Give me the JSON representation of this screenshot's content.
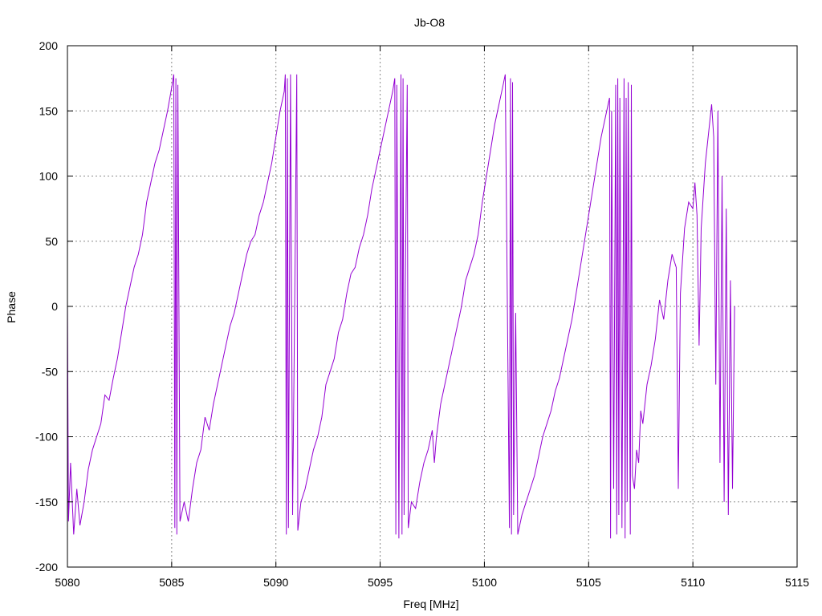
{
  "chart_data": {
    "type": "line",
    "title": "Jb-O8",
    "xlabel": "Freq [MHz]",
    "ylabel": "Phase",
    "xlim": [
      5080,
      5115
    ],
    "ylim": [
      -200,
      200
    ],
    "x_ticks": [
      5080,
      5085,
      5090,
      5095,
      5100,
      5105,
      5110,
      5115
    ],
    "y_ticks": [
      -200,
      -150,
      -100,
      -50,
      0,
      50,
      100,
      150,
      200
    ],
    "x_tick_labels": [
      "5080",
      "5085",
      "5090",
      "5095",
      "5100",
      "5105",
      "5110",
      "5115"
    ],
    "y_tick_labels": [
      "-200",
      "-150",
      "-100",
      "-50",
      "0",
      "50",
      "100",
      "150",
      "200"
    ],
    "grid": true,
    "legend": "none",
    "color": "#9400d3",
    "series": [
      {
        "points": [
          [
            5080.0,
            5
          ],
          [
            5080.05,
            -165
          ],
          [
            5080.15,
            -120
          ],
          [
            5080.3,
            -175
          ],
          [
            5080.45,
            -140
          ],
          [
            5080.6,
            -168
          ],
          [
            5080.8,
            -150
          ],
          [
            5081.0,
            -125
          ],
          [
            5081.2,
            -110
          ],
          [
            5081.4,
            -100
          ],
          [
            5081.6,
            -90
          ],
          [
            5081.8,
            -68
          ],
          [
            5082.0,
            -72
          ],
          [
            5082.2,
            -55
          ],
          [
            5082.4,
            -40
          ],
          [
            5082.6,
            -20
          ],
          [
            5082.8,
            0
          ],
          [
            5083.0,
            15
          ],
          [
            5083.2,
            30
          ],
          [
            5083.4,
            40
          ],
          [
            5083.6,
            55
          ],
          [
            5083.8,
            80
          ],
          [
            5084.0,
            95
          ],
          [
            5084.2,
            110
          ],
          [
            5084.4,
            120
          ],
          [
            5084.6,
            135
          ],
          [
            5084.8,
            150
          ],
          [
            5085.0,
            168
          ],
          [
            5085.1,
            178
          ],
          [
            5085.15,
            -170
          ],
          [
            5085.2,
            175
          ],
          [
            5085.25,
            -175
          ],
          [
            5085.3,
            170
          ],
          [
            5085.35,
            0
          ],
          [
            5085.4,
            -165
          ],
          [
            5085.6,
            -150
          ],
          [
            5085.8,
            -165
          ],
          [
            5086.0,
            -140
          ],
          [
            5086.2,
            -120
          ],
          [
            5086.4,
            -110
          ],
          [
            5086.6,
            -85
          ],
          [
            5086.8,
            -95
          ],
          [
            5087.0,
            -75
          ],
          [
            5087.2,
            -60
          ],
          [
            5087.4,
            -45
          ],
          [
            5087.6,
            -30
          ],
          [
            5087.8,
            -15
          ],
          [
            5088.0,
            -5
          ],
          [
            5088.2,
            10
          ],
          [
            5088.4,
            25
          ],
          [
            5088.6,
            40
          ],
          [
            5088.8,
            50
          ],
          [
            5089.0,
            55
          ],
          [
            5089.2,
            70
          ],
          [
            5089.4,
            80
          ],
          [
            5089.6,
            95
          ],
          [
            5089.8,
            110
          ],
          [
            5090.0,
            130
          ],
          [
            5090.2,
            150
          ],
          [
            5090.4,
            165
          ],
          [
            5090.45,
            178
          ],
          [
            5090.5,
            -175
          ],
          [
            5090.55,
            175
          ],
          [
            5090.6,
            -170
          ],
          [
            5090.7,
            178
          ],
          [
            5090.8,
            -160
          ],
          [
            5090.9,
            2
          ],
          [
            5091.0,
            178
          ],
          [
            5091.05,
            -172
          ],
          [
            5091.2,
            -150
          ],
          [
            5091.4,
            -140
          ],
          [
            5091.6,
            -125
          ],
          [
            5091.8,
            -110
          ],
          [
            5092.0,
            -100
          ],
          [
            5092.2,
            -85
          ],
          [
            5092.4,
            -60
          ],
          [
            5092.6,
            -50
          ],
          [
            5092.8,
            -40
          ],
          [
            5093.0,
            -20
          ],
          [
            5093.2,
            -10
          ],
          [
            5093.4,
            10
          ],
          [
            5093.6,
            25
          ],
          [
            5093.8,
            30
          ],
          [
            5094.0,
            45
          ],
          [
            5094.2,
            55
          ],
          [
            5094.4,
            70
          ],
          [
            5094.6,
            90
          ],
          [
            5094.8,
            105
          ],
          [
            5095.0,
            120
          ],
          [
            5095.2,
            135
          ],
          [
            5095.4,
            150
          ],
          [
            5095.6,
            165
          ],
          [
            5095.7,
            175
          ],
          [
            5095.75,
            -175
          ],
          [
            5095.8,
            170
          ],
          [
            5095.85,
            5
          ],
          [
            5095.9,
            -178
          ],
          [
            5096.0,
            178
          ],
          [
            5096.05,
            -175
          ],
          [
            5096.1,
            175
          ],
          [
            5096.15,
            -160
          ],
          [
            5096.2,
            0
          ],
          [
            5096.3,
            170
          ],
          [
            5096.35,
            -170
          ],
          [
            5096.5,
            -150
          ],
          [
            5096.7,
            -155
          ],
          [
            5096.9,
            -135
          ],
          [
            5097.1,
            -120
          ],
          [
            5097.3,
            -110
          ],
          [
            5097.5,
            -95
          ],
          [
            5097.6,
            -120
          ],
          [
            5097.7,
            -100
          ],
          [
            5097.9,
            -75
          ],
          [
            5098.1,
            -60
          ],
          [
            5098.3,
            -45
          ],
          [
            5098.5,
            -30
          ],
          [
            5098.7,
            -15
          ],
          [
            5098.9,
            0
          ],
          [
            5099.1,
            20
          ],
          [
            5099.3,
            30
          ],
          [
            5099.5,
            40
          ],
          [
            5099.7,
            55
          ],
          [
            5099.9,
            80
          ],
          [
            5100.1,
            100
          ],
          [
            5100.3,
            120
          ],
          [
            5100.5,
            140
          ],
          [
            5100.7,
            155
          ],
          [
            5100.9,
            170
          ],
          [
            5101.0,
            178
          ],
          [
            5101.2,
            -170
          ],
          [
            5101.25,
            175
          ],
          [
            5101.3,
            -175
          ],
          [
            5101.35,
            172
          ],
          [
            5101.4,
            -160
          ],
          [
            5101.5,
            -5
          ],
          [
            5101.6,
            -175
          ],
          [
            5101.8,
            -160
          ],
          [
            5102.0,
            -150
          ],
          [
            5102.2,
            -140
          ],
          [
            5102.4,
            -130
          ],
          [
            5102.6,
            -115
          ],
          [
            5102.8,
            -100
          ],
          [
            5103.0,
            -90
          ],
          [
            5103.2,
            -80
          ],
          [
            5103.4,
            -65
          ],
          [
            5103.6,
            -55
          ],
          [
            5103.8,
            -40
          ],
          [
            5104.0,
            -25
          ],
          [
            5104.2,
            -10
          ],
          [
            5104.4,
            10
          ],
          [
            5104.6,
            30
          ],
          [
            5104.8,
            50
          ],
          [
            5105.0,
            70
          ],
          [
            5105.2,
            90
          ],
          [
            5105.4,
            110
          ],
          [
            5105.6,
            130
          ],
          [
            5105.8,
            145
          ],
          [
            5106.0,
            160
          ],
          [
            5106.05,
            -178
          ],
          [
            5106.1,
            150
          ],
          [
            5106.2,
            -140
          ],
          [
            5106.3,
            170
          ],
          [
            5106.35,
            -175
          ],
          [
            5106.4,
            175
          ],
          [
            5106.45,
            -160
          ],
          [
            5106.5,
            160
          ],
          [
            5106.6,
            -170
          ],
          [
            5106.7,
            175
          ],
          [
            5106.75,
            -178
          ],
          [
            5106.8,
            160
          ],
          [
            5106.85,
            -150
          ],
          [
            5106.9,
            172
          ],
          [
            5107.0,
            -175
          ],
          [
            5107.05,
            170
          ],
          [
            5107.1,
            -130
          ],
          [
            5107.2,
            -140
          ],
          [
            5107.3,
            -110
          ],
          [
            5107.4,
            -120
          ],
          [
            5107.5,
            -80
          ],
          [
            5107.6,
            -90
          ],
          [
            5107.8,
            -60
          ],
          [
            5108.0,
            -45
          ],
          [
            5108.2,
            -25
          ],
          [
            5108.4,
            5
          ],
          [
            5108.6,
            -10
          ],
          [
            5108.8,
            20
          ],
          [
            5109.0,
            40
          ],
          [
            5109.2,
            30
          ],
          [
            5109.3,
            -140
          ],
          [
            5109.4,
            10
          ],
          [
            5109.6,
            60
          ],
          [
            5109.8,
            80
          ],
          [
            5110.0,
            75
          ],
          [
            5110.1,
            95
          ],
          [
            5110.2,
            70
          ],
          [
            5110.3,
            -30
          ],
          [
            5110.4,
            60
          ],
          [
            5110.6,
            110
          ],
          [
            5110.8,
            140
          ],
          [
            5110.9,
            155
          ],
          [
            5111.0,
            130
          ],
          [
            5111.1,
            -60
          ],
          [
            5111.2,
            150
          ],
          [
            5111.3,
            -120
          ],
          [
            5111.4,
            100
          ],
          [
            5111.5,
            -150
          ],
          [
            5111.6,
            75
          ],
          [
            5111.7,
            -160
          ],
          [
            5111.8,
            20
          ],
          [
            5111.9,
            -140
          ],
          [
            5112.0,
            0
          ]
        ]
      }
    ]
  }
}
